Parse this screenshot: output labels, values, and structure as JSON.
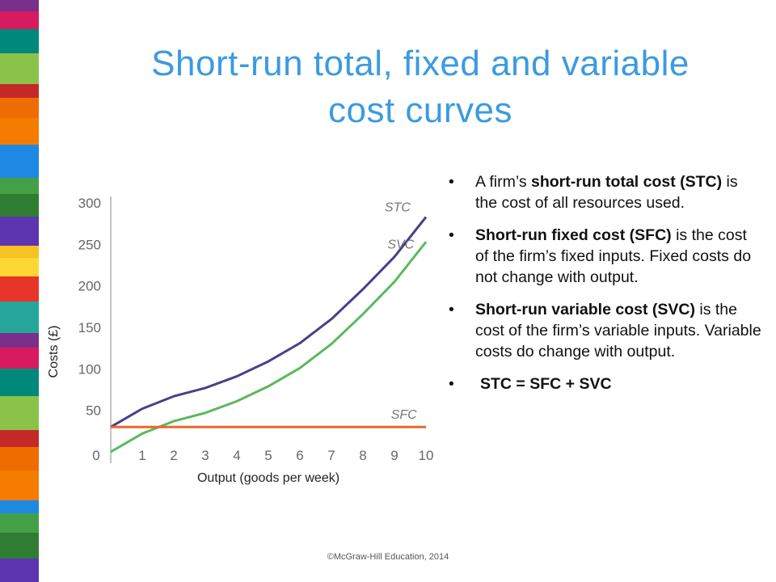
{
  "slide": {
    "title_line1": "Short-run total, fixed and variable",
    "title_line2": "cost curves",
    "footer": "©McGraw-Hill Education, 2014"
  },
  "bullets": [
    {
      "pre": "A firm’s ",
      "bold": "short-run total cost (STC)",
      "post": " is the cost of all resources used."
    },
    {
      "pre": "",
      "bold": "Short-run fixed cost (SFC)",
      "post": " is the cost of the firm’s fixed inputs. Fixed costs do not change with output."
    },
    {
      "pre": "",
      "bold": "Short-run variable cost (SVC)",
      "post": " is the cost of the firm’s variable inputs. Variable costs do change with output."
    },
    {
      "pre": "",
      "bold": "STC = SFC + SVC",
      "post": ""
    }
  ],
  "colors": {
    "title": "#3b9be0",
    "stc": "#4b3e8c",
    "svc": "#5cb85c",
    "sfc": "#e8692a",
    "axis": "#888888"
  },
  "chart_data": {
    "type": "line",
    "xlabel": "Output (goods per week)",
    "ylabel": "Costs (£)",
    "xlim": [
      0,
      10
    ],
    "ylim": [
      0,
      300
    ],
    "x_ticks": [
      "0",
      "1",
      "2",
      "3",
      "4",
      "5",
      "6",
      "7",
      "8",
      "9",
      "10"
    ],
    "y_ticks": [
      "50",
      "100",
      "150",
      "200",
      "250",
      "300"
    ],
    "x": [
      0,
      1,
      2,
      3,
      4,
      5,
      6,
      7,
      8,
      9,
      10
    ],
    "series": [
      {
        "name": "STC",
        "values": [
          30,
          52,
          67,
          77,
          91,
          109,
          131,
          160,
          196,
          235,
          283
        ]
      },
      {
        "name": "SVC",
        "values": [
          0,
          22,
          37,
          47,
          61,
          79,
          101,
          130,
          166,
          205,
          253
        ]
      },
      {
        "name": "SFC",
        "values": [
          30,
          30,
          30,
          30,
          30,
          30,
          30,
          30,
          30,
          30,
          30
        ]
      }
    ]
  }
}
